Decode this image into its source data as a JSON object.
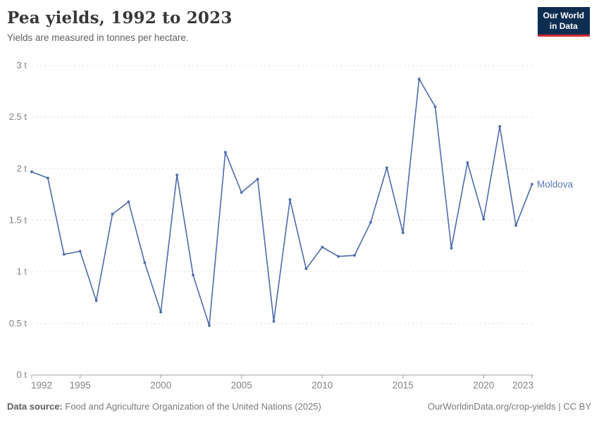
{
  "header": {
    "title": "Pea yields, 1992 to 2023",
    "subtitle": "Yields are measured in tonnes per hectare.",
    "logo": {
      "line1": "Our World",
      "line2": "in Data"
    }
  },
  "chart_data": {
    "type": "line",
    "title": "Pea yields, 1992 to 2023",
    "subtitle": "Yields are measured in tonnes per hectare.",
    "unit": "tonnes per hectare",
    "x": [
      1992,
      1993,
      1994,
      1995,
      1996,
      1997,
      1998,
      1999,
      2000,
      2001,
      2002,
      2003,
      2004,
      2005,
      2006,
      2007,
      2008,
      2009,
      2010,
      2011,
      2012,
      2013,
      2014,
      2015,
      2016,
      2017,
      2018,
      2019,
      2020,
      2021,
      2022,
      2023
    ],
    "series": [
      {
        "name": "Moldova",
        "color": "#4c6bab",
        "values": [
          1.97,
          1.91,
          1.17,
          1.2,
          0.72,
          1.56,
          1.68,
          1.09,
          0.61,
          1.94,
          0.97,
          0.48,
          2.16,
          1.77,
          1.9,
          0.52,
          1.7,
          1.03,
          1.24,
          1.15,
          1.16,
          1.48,
          2.01,
          1.38,
          2.87,
          2.6,
          1.23,
          2.06,
          1.51,
          2.41,
          1.45,
          1.85
        ]
      }
    ],
    "xlim": [
      1992,
      2023
    ],
    "ylim": [
      0,
      3
    ],
    "ytick_values": [
      0,
      0.5,
      1,
      1.5,
      2,
      2.5,
      3
    ],
    "ytick_labels": [
      "0 t",
      "0.5 t",
      "1 t",
      "1.5 t",
      "2 t",
      "2.5 t",
      "3 t"
    ],
    "xtick_values": [
      1992,
      1995,
      2000,
      2005,
      2010,
      2015,
      2020,
      2023
    ],
    "grid": "horizontal-dashed",
    "legend_position": "end-of-line-label"
  },
  "footer": {
    "datasource_label": "Data source:",
    "datasource_text": "Food and Agriculture Organization of the United Nations (2025)",
    "link_text": "OurWorldinData.org/crop-yields | CC BY"
  },
  "colors": {
    "line": "#4c6bab",
    "entity_label": "#5a78b4",
    "gridline": "#dddddd",
    "axis": "#a1a1a1",
    "tick_label": "#828282",
    "logo_bg": "#0d2d51",
    "logo_red": "#d22a36"
  }
}
